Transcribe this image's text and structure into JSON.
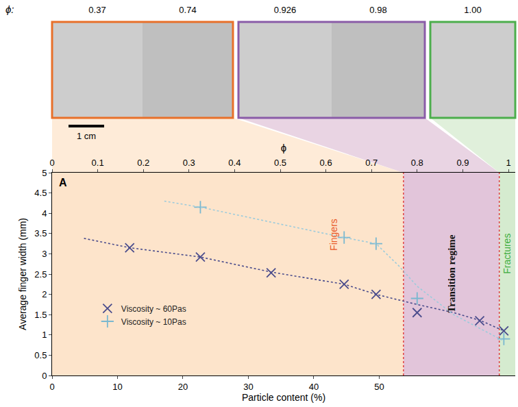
{
  "header": {
    "phi_label": "ϕ:",
    "scale_bar": "1 cm",
    "panels": [
      {
        "phi": [
          "0.37",
          "0.74"
        ],
        "color": "#e8702a"
      },
      {
        "phi": [
          "0.926",
          "0.98"
        ],
        "color": "#8a5ca8"
      },
      {
        "phi": [
          "1.00"
        ],
        "color": "#4cae4c"
      }
    ]
  },
  "chart_data": {
    "type": "scatter",
    "panel_label": "A",
    "x_label": "ϕ",
    "xlim": [
      0,
      1.015
    ],
    "xticks": [
      0,
      0.1,
      0.2,
      0.3,
      0.4,
      0.5,
      0.6,
      0.7,
      0.8,
      0.9,
      1
    ],
    "x2_label": "Particle content (%)",
    "x2lim": [
      0,
      70.8
    ],
    "x2ticks": [
      0,
      10,
      20,
      30,
      40,
      50
    ],
    "y_label": "Average finger width (mm)",
    "ylim": [
      0,
      5
    ],
    "yticks": [
      0,
      0.5,
      1,
      1.5,
      2,
      2.5,
      3,
      3.5,
      4,
      4.5,
      5
    ],
    "grid": false,
    "legend": "lower left",
    "regions": [
      {
        "label": "Fingers",
        "from": 0,
        "to": 0.77,
        "color": "#fde4cb"
      },
      {
        "label": "Transition regime",
        "from": 0.77,
        "to": 0.98,
        "color": "#e2c5da"
      },
      {
        "label": "Fractures",
        "from": 0.98,
        "to": 1.015,
        "color": "#d5ebcf"
      }
    ],
    "series": [
      {
        "name": "Viscosity ~ 60Pas",
        "type": "scatter",
        "marker": "x",
        "color": "#4a4c8c",
        "x": [
          0.17,
          0.325,
          0.48,
          0.64,
          0.71,
          0.8,
          0.937,
          0.99
        ],
        "values": [
          3.15,
          2.92,
          2.53,
          2.25,
          2.0,
          1.55,
          1.35,
          1.1
        ]
      },
      {
        "name": "Viscosity ~ 10Pas",
        "type": "scatter",
        "marker": "cross",
        "color": "#7ab8d0",
        "x": [
          0.325,
          0.64,
          0.71,
          0.8,
          0.99
        ],
        "values": [
          4.15,
          3.4,
          3.25,
          1.9,
          0.9
        ]
      },
      {
        "type": "line",
        "line_style": "dotted",
        "color": "#4a4c8c",
        "x": [
          0.07,
          0.17,
          0.325,
          0.48,
          0.64,
          0.71,
          0.8,
          0.88,
          0.94,
          0.99
        ],
        "values": [
          3.38,
          3.15,
          2.92,
          2.55,
          2.25,
          2.0,
          1.75,
          1.55,
          1.35,
          1.1
        ]
      },
      {
        "type": "line",
        "line_style": "dotted",
        "color": "#9ccbdc",
        "x": [
          0.246,
          0.325,
          0.48,
          0.64,
          0.71,
          0.76,
          0.8,
          0.88,
          0.99
        ],
        "values": [
          4.3,
          4.15,
          3.78,
          3.4,
          3.25,
          2.7,
          2.2,
          1.5,
          0.85
        ]
      }
    ]
  }
}
